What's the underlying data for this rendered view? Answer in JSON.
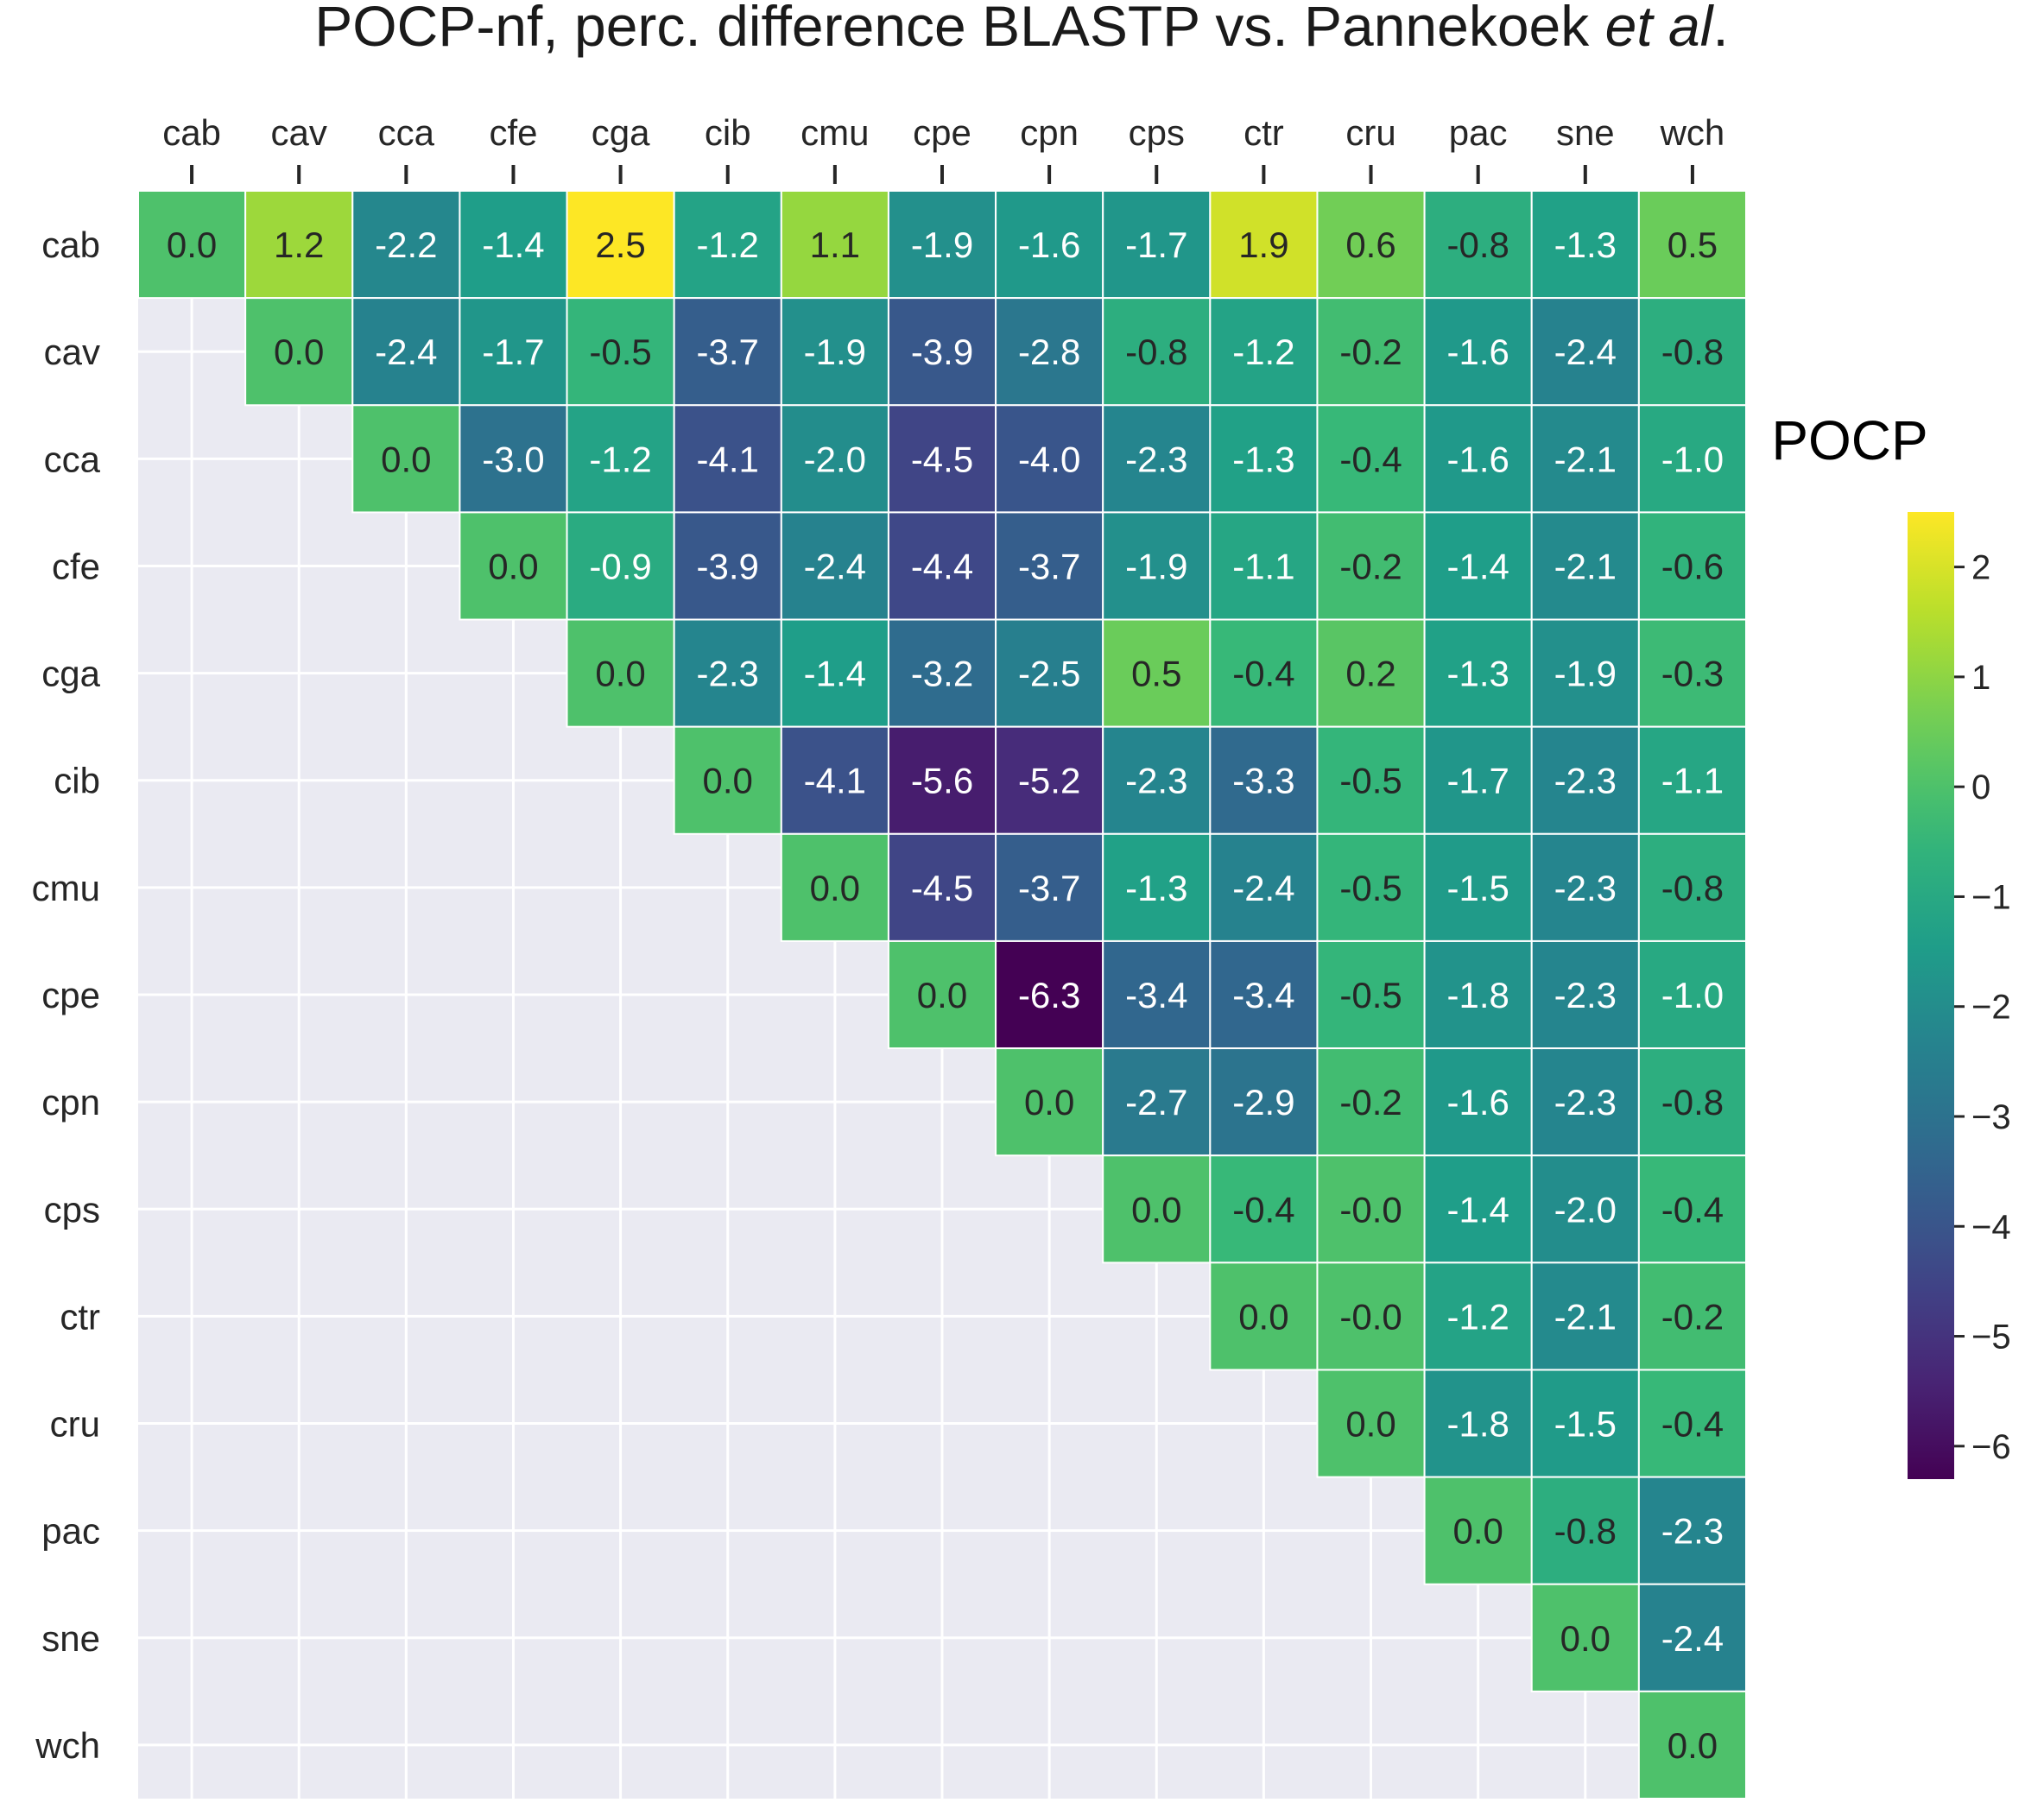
{
  "title_main": "POCP-nf, perc. difference BLASTP vs. Pannekoek ",
  "title_italic": "et al",
  "title_end": ".",
  "colorbar_label": "POCP",
  "chart_data": {
    "type": "heatmap",
    "colormap": "viridis",
    "background_color": "#eaeaf2",
    "grid": true,
    "legend": "right",
    "x_ticks_position": "top",
    "vmin": -6.3,
    "vmax": 2.5,
    "colorbar_ticks": [
      2,
      1,
      0,
      -1,
      -2,
      -3,
      -4,
      -5,
      -6
    ],
    "colorbar_tick_labels": [
      "2",
      "1",
      "0",
      "−1",
      "−2",
      "−3",
      "−4",
      "−5",
      "−6"
    ],
    "labels": [
      "cab",
      "cav",
      "cca",
      "cfe",
      "cga",
      "cib",
      "cmu",
      "cpe",
      "cpn",
      "cps",
      "ctr",
      "cru",
      "pac",
      "sne",
      "wch"
    ],
    "rows": [
      [
        "0.0",
        "1.2",
        "-2.2",
        "-1.4",
        "2.5",
        "-1.2",
        "1.1",
        "-1.9",
        "-1.6",
        "-1.7",
        "1.9",
        "0.6",
        "-0.8",
        "-1.3",
        "0.5"
      ],
      [
        null,
        "0.0",
        "-2.4",
        "-1.7",
        "-0.5",
        "-3.7",
        "-1.9",
        "-3.9",
        "-2.8",
        "-0.8",
        "-1.2",
        "-0.2",
        "-1.6",
        "-2.4",
        "-0.8"
      ],
      [
        null,
        null,
        "0.0",
        "-3.0",
        "-1.2",
        "-4.1",
        "-2.0",
        "-4.5",
        "-4.0",
        "-2.3",
        "-1.3",
        "-0.4",
        "-1.6",
        "-2.1",
        "-1.0"
      ],
      [
        null,
        null,
        null,
        "0.0",
        "-0.9",
        "-3.9",
        "-2.4",
        "-4.4",
        "-3.7",
        "-1.9",
        "-1.1",
        "-0.2",
        "-1.4",
        "-2.1",
        "-0.6"
      ],
      [
        null,
        null,
        null,
        null,
        "0.0",
        "-2.3",
        "-1.4",
        "-3.2",
        "-2.5",
        "0.5",
        "-0.4",
        "0.2",
        "-1.3",
        "-1.9",
        "-0.3"
      ],
      [
        null,
        null,
        null,
        null,
        null,
        "0.0",
        "-4.1",
        "-5.6",
        "-5.2",
        "-2.3",
        "-3.3",
        "-0.5",
        "-1.7",
        "-2.3",
        "-1.1"
      ],
      [
        null,
        null,
        null,
        null,
        null,
        null,
        "0.0",
        "-4.5",
        "-3.7",
        "-1.3",
        "-2.4",
        "-0.5",
        "-1.5",
        "-2.3",
        "-0.8"
      ],
      [
        null,
        null,
        null,
        null,
        null,
        null,
        null,
        "0.0",
        "-6.3",
        "-3.4",
        "-3.4",
        "-0.5",
        "-1.8",
        "-2.3",
        "-1.0"
      ],
      [
        null,
        null,
        null,
        null,
        null,
        null,
        null,
        null,
        "0.0",
        "-2.7",
        "-2.9",
        "-0.2",
        "-1.6",
        "-2.3",
        "-0.8"
      ],
      [
        null,
        null,
        null,
        null,
        null,
        null,
        null,
        null,
        null,
        "0.0",
        "-0.4",
        "-0.0",
        "-1.4",
        "-2.0",
        "-0.4"
      ],
      [
        null,
        null,
        null,
        null,
        null,
        null,
        null,
        null,
        null,
        null,
        "0.0",
        "-0.0",
        "-1.2",
        "-2.1",
        "-0.2"
      ],
      [
        null,
        null,
        null,
        null,
        null,
        null,
        null,
        null,
        null,
        null,
        null,
        "0.0",
        "-1.8",
        "-1.5",
        "-0.4"
      ],
      [
        null,
        null,
        null,
        null,
        null,
        null,
        null,
        null,
        null,
        null,
        null,
        null,
        "0.0",
        "-0.8",
        "-2.3"
      ],
      [
        null,
        null,
        null,
        null,
        null,
        null,
        null,
        null,
        null,
        null,
        null,
        null,
        null,
        "0.0",
        "-2.4"
      ],
      [
        null,
        null,
        null,
        null,
        null,
        null,
        null,
        null,
        null,
        null,
        null,
        null,
        null,
        null,
        "0.0"
      ]
    ]
  }
}
